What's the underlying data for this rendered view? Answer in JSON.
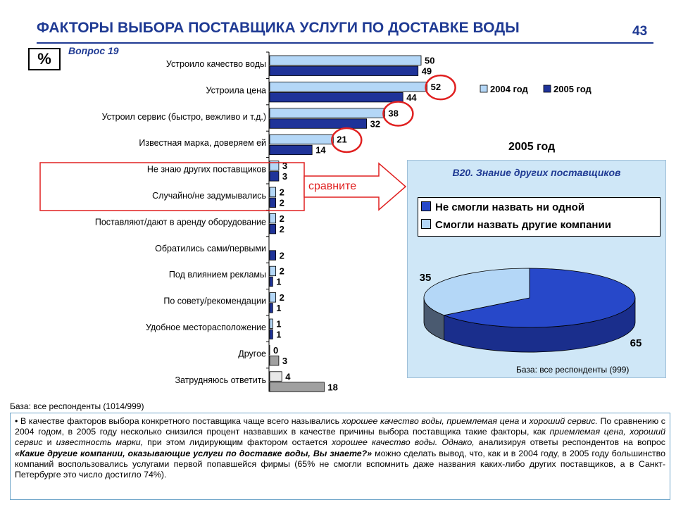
{
  "header": {
    "title": "ФАКТОРЫ ВЫБОРА ПОСТАВЩИКА УСЛУГИ ПО ДОСТАВКЕ ВОДЫ",
    "page_number": "43",
    "unit_label": "%",
    "question": "Вопрос 19"
  },
  "compare_label": "сравните",
  "base_left": "База: все респонденты (1014/999)",
  "panel": {
    "year": "2005 год",
    "title": "В20. Знание других поставщиков",
    "base": "База: все респонденты (999)"
  },
  "colors": {
    "s2004": "#B4D7F7",
    "s2005": "#1F3399",
    "other": "#A0A0A0",
    "highlight": "#E02020",
    "title": "#1F3A93",
    "pie_light": "#B4D7F7",
    "pie_dark": "#2748C9"
  },
  "chart_data": [
    {
      "type": "bar",
      "orientation": "horizontal",
      "categories": [
        "Устроило качество воды",
        "Устроила цена",
        "Устроил сервис (быстро, вежливо и т.д.)",
        "Известная марка, доверяем ей",
        "Не знаю других поставщиков",
        "Случайно/не задумывались",
        "Поставляют/дают в аренду оборудование",
        "Обратились сами/первыми",
        "Под влиянием рекламы",
        "По совету/рекомендации",
        "Удобное месторасположение",
        "Другое",
        "Затрудняюсь ответить"
      ],
      "series": [
        {
          "name": "2004 год",
          "values": [
            50,
            52,
            38,
            21,
            3,
            2,
            2,
            null,
            2,
            2,
            1,
            0,
            4
          ]
        },
        {
          "name": "2005 год",
          "values": [
            49,
            44,
            32,
            14,
            3,
            2,
            2,
            2,
            1,
            1,
            1,
            3,
            18
          ]
        }
      ],
      "highlighted": [
        {
          "series": "2004 год",
          "category": "Устроила цена"
        },
        {
          "series": "2004 год",
          "category": "Устроил сервис (быстро, вежливо и т.д.)"
        },
        {
          "series": "2004 год",
          "category": "Известная марка, доверяем ей"
        }
      ],
      "legend_position": "top-right",
      "grid": false
    },
    {
      "type": "pie",
      "labels": [
        "Не смогли назвать ни одной",
        "Смогли назвать другие компании"
      ],
      "values": [
        65,
        35
      ],
      "three_d": true,
      "legend_position": "top"
    }
  ],
  "note": {
    "parts": [
      {
        "t": "• В качестве факторов выбора конкретного поставщика чаще всего назывались ",
        "s": "n"
      },
      {
        "t": "хорошее качество воды, приемлемая цена",
        "s": "i"
      },
      {
        "t": " и ",
        "s": "n"
      },
      {
        "t": "хороший сервис.",
        "s": "i"
      },
      {
        "t": " По сравнению с 2004 годом, в 2005 году несколько снизился процент назвавших в качестве причины выбора поставщика такие факторы, как ",
        "s": "n"
      },
      {
        "t": "приемлемая цена, хороший сервис",
        "s": "i"
      },
      {
        "t": " и ",
        "s": "n"
      },
      {
        "t": "известность марки,",
        "s": "i"
      },
      {
        "t": " при этом лидирующим фактором остается ",
        "s": "n"
      },
      {
        "t": "хорошее качество воды. Однако,",
        "s": "i"
      },
      {
        "t": " анализируя ответы респондентов на вопрос ",
        "s": "n"
      },
      {
        "t": "«Какие другие компании, оказывающие услуги по доставке воды, Вы знаете?»",
        "s": "b"
      },
      {
        "t": " можно сделать вывод, что, как и в 2004 году, в 2005 году большинство компаний воспользовались услугами первой попавшейся фирмы (65% не смогли вспомнить даже названия каких-либо других поставщиков, а в Санкт-Петербурге это число достигло 74%).",
        "s": "n"
      }
    ]
  }
}
